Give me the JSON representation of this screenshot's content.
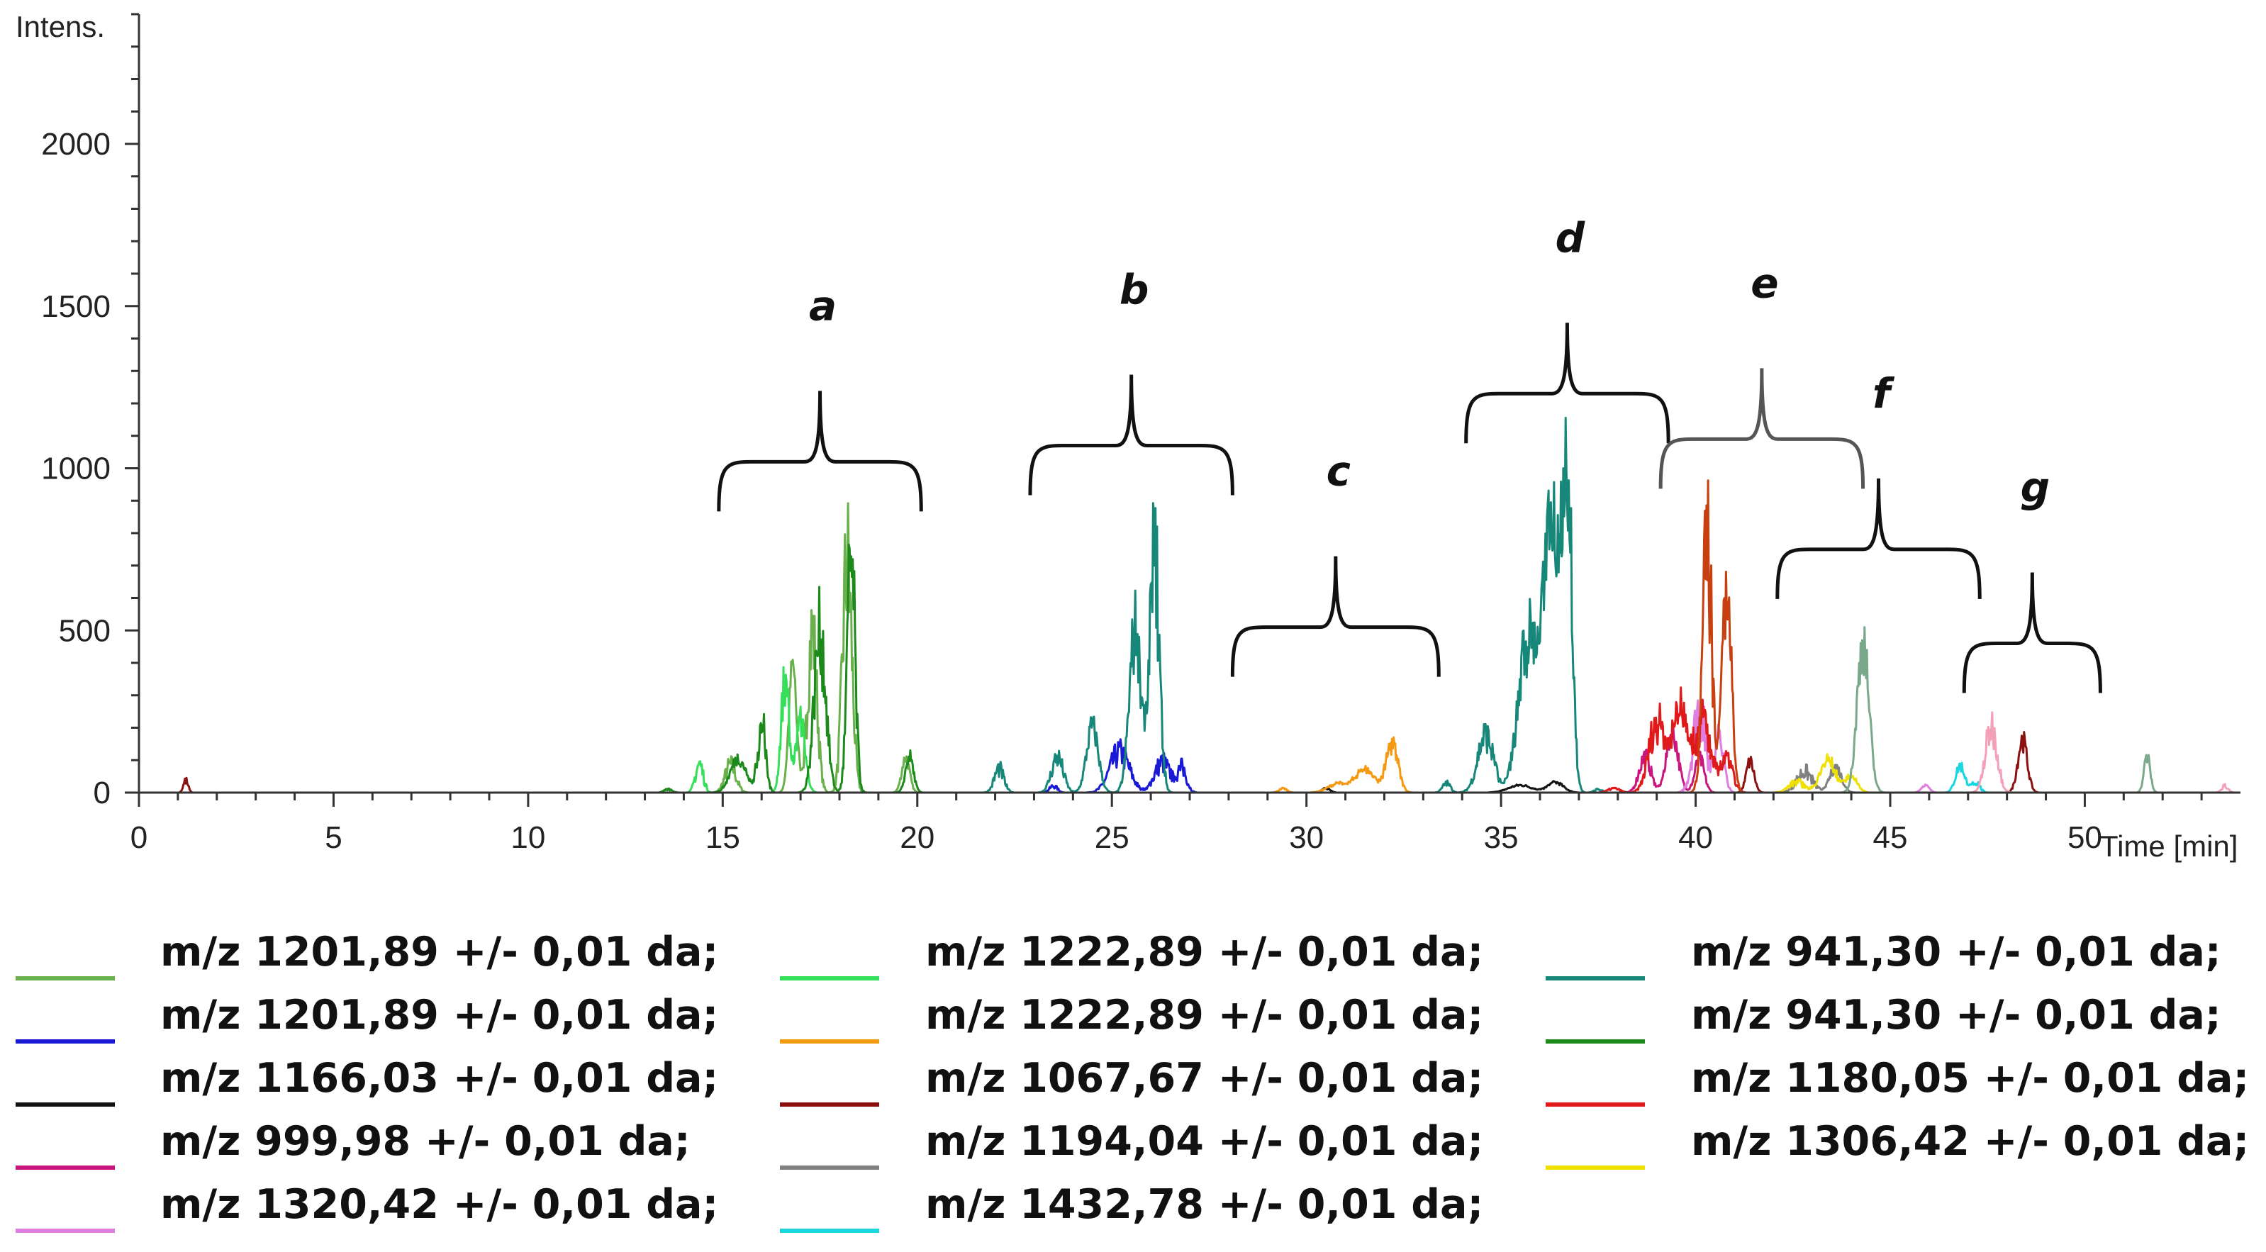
{
  "chart_data": {
    "type": "line",
    "title": "",
    "ylabel": "Intens.",
    "xlabel": "Time [min]",
    "xlim": [
      0,
      54
    ],
    "ylim": [
      0,
      2400
    ],
    "x_ticks": [
      0,
      5,
      10,
      15,
      20,
      25,
      30,
      35,
      40,
      45,
      50
    ],
    "y_ticks": [
      0,
      500,
      1000,
      1500,
      2000
    ],
    "groups": [
      {
        "label": "a",
        "x_start": 14.9,
        "x_end": 20.1,
        "y": 1020
      },
      {
        "label": "b",
        "x_start": 22.9,
        "x_end": 28.1,
        "y": 1070
      },
      {
        "label": "c",
        "x_start": 28.1,
        "x_end": 33.4,
        "y": 510
      },
      {
        "label": "d",
        "x_start": 34.1,
        "x_end": 39.3,
        "y": 1230
      },
      {
        "label": "e",
        "x_start": 39.1,
        "x_end": 44.3,
        "y": 1090
      },
      {
        "label": "f",
        "x_start": 42.1,
        "x_end": 47.3,
        "y": 750
      },
      {
        "label": "g",
        "x_start": 46.9,
        "x_end": 50.4,
        "y": 460
      }
    ],
    "series": [
      {
        "name": "m/z 1201,89 +/- 0,01 da;",
        "color": "#6ab04c",
        "peaks": [
          [
            15.2,
            105,
            0.14
          ],
          [
            16.8,
            430,
            0.1
          ],
          [
            17.3,
            590,
            0.12
          ],
          [
            18.2,
            860,
            0.12
          ],
          [
            19.7,
            120,
            0.1
          ]
        ]
      },
      {
        "name": "m/z 1201,89 +/- 0,01 da;",
        "color": "#1a1ad6",
        "peaks": [
          [
            23.5,
            25,
            0.1
          ],
          [
            25.2,
            150,
            0.25
          ],
          [
            26.3,
            115,
            0.2
          ],
          [
            26.8,
            90,
            0.12
          ]
        ]
      },
      {
        "name": "m/z 1166,03 +/- 0,01 da;",
        "color": "#111111",
        "peaks": [
          [
            30.5,
            15,
            0.1
          ],
          [
            35.5,
            25,
            0.3
          ],
          [
            36.4,
            35,
            0.2
          ]
        ]
      },
      {
        "name": "m/z  999,98 +/- 0,01 da;",
        "color": "#c8167e",
        "peaks": [
          [
            38.7,
            130,
            0.15
          ],
          [
            39.4,
            210,
            0.15
          ],
          [
            40.1,
            120,
            0.12
          ]
        ]
      },
      {
        "name": "m/z  1320,42 +/- 0,01 da;",
        "color": "#e07de0",
        "peaks": [
          [
            40.1,
            330,
            0.16
          ],
          [
            40.6,
            200,
            0.12
          ],
          [
            45.9,
            25,
            0.1
          ]
        ]
      },
      {
        "name": "m/z 1222,89 +/- 0,01 da;",
        "color": "#34e05a",
        "peaks": [
          [
            14.4,
            110,
            0.1
          ],
          [
            16.6,
            400,
            0.1
          ],
          [
            17.0,
            250,
            0.12
          ]
        ]
      },
      {
        "name": "m/z 1222,89 +/- 0,01 da;",
        "color": "#f39a12",
        "peaks": [
          [
            29.4,
            15,
            0.1
          ],
          [
            30.8,
            30,
            0.25
          ],
          [
            31.5,
            80,
            0.25
          ],
          [
            32.2,
            175,
            0.15
          ]
        ]
      },
      {
        "name": "m/z 1067,67 +/- 0,01 da;",
        "color": "#8b1010",
        "peaks": [
          [
            1.2,
            45,
            0.06
          ],
          [
            41.4,
            110,
            0.1
          ],
          [
            48.4,
            185,
            0.12
          ]
        ]
      },
      {
        "name": "m/z  1194,04 +/- 0,01 da;",
        "color": "#808080",
        "peaks": [
          [
            42.8,
            80,
            0.2
          ],
          [
            43.6,
            90,
            0.15
          ]
        ]
      },
      {
        "name": "m/z  1432,78 +/- 0,01 da;",
        "color": "#1ad6e0",
        "peaks": [
          [
            46.8,
            95,
            0.12
          ],
          [
            47.2,
            40,
            0.1
          ]
        ]
      },
      {
        "name": "m/z 941,30 +/- 0,01 da;",
        "color": "#17877a",
        "peaks": [
          [
            22.1,
            90,
            0.12
          ],
          [
            23.6,
            130,
            0.15
          ],
          [
            24.5,
            230,
            0.15
          ],
          [
            25.6,
            580,
            0.15
          ],
          [
            26.1,
            880,
            0.12
          ],
          [
            33.6,
            35,
            0.1
          ],
          [
            34.6,
            210,
            0.2
          ],
          [
            35.7,
            550,
            0.25
          ],
          [
            36.3,
            960,
            0.2
          ],
          [
            36.7,
            1150,
            0.12
          ],
          [
            37.5,
            12,
            0.1
          ]
        ]
      },
      {
        "name": "m/z 941,30 +/- 0,01 da;",
        "color": "#1b8a1b",
        "peaks": [
          [
            13.6,
            12,
            0.1
          ],
          [
            15.4,
            120,
            0.2
          ],
          [
            16.0,
            260,
            0.1
          ],
          [
            17.5,
            580,
            0.15
          ],
          [
            18.3,
            850,
            0.1
          ],
          [
            19.8,
            125,
            0.1
          ]
        ]
      },
      {
        "name": "m/z 1180,05 +/- 0,01 da;",
        "color": "#e01a1a",
        "peaks": [
          [
            37.9,
            15,
            0.15
          ],
          [
            39.0,
            260,
            0.2
          ],
          [
            39.6,
            300,
            0.2
          ],
          [
            40.2,
            260,
            0.2
          ],
          [
            40.8,
            120,
            0.15
          ]
        ]
      },
      {
        "name": "m/z  1306,42 +/- 0,01 da;",
        "color": "#f0e000",
        "peaks": [
          [
            42.6,
            40,
            0.2
          ],
          [
            43.4,
            115,
            0.2
          ],
          [
            44.0,
            60,
            0.15
          ]
        ]
      },
      {
        "name": "",
        "color": "#c84010",
        "peaks": [
          [
            40.3,
            900,
            0.12
          ],
          [
            40.8,
            700,
            0.12
          ]
        ]
      },
      {
        "name": "",
        "color": "#7aa88a",
        "peaks": [
          [
            44.3,
            520,
            0.15
          ],
          [
            51.6,
            125,
            0.08
          ]
        ]
      },
      {
        "name": "",
        "color": "#f4a0b8",
        "peaks": [
          [
            47.6,
            240,
            0.15
          ],
          [
            53.6,
            25,
            0.08
          ]
        ]
      }
    ]
  }
}
